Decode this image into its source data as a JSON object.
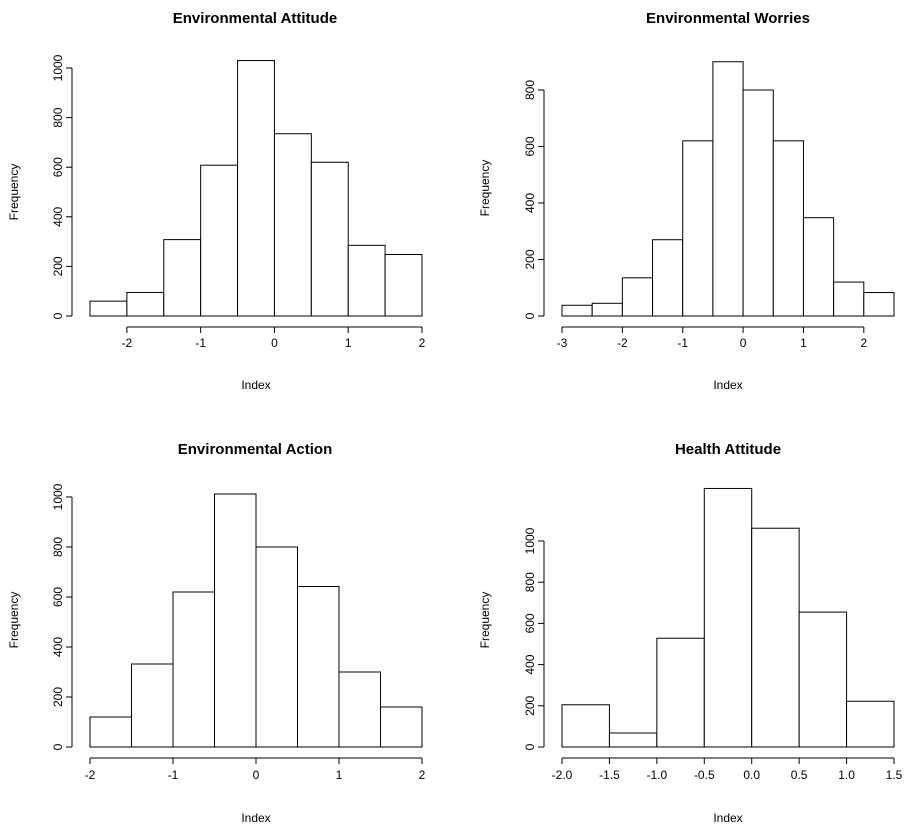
{
  "chart_data": [
    {
      "type": "bar",
      "title": "Environmental Attitude",
      "xlabel": "Index",
      "ylabel": "Frequency",
      "bin_edges": [
        -2.5,
        -2.0,
        -1.5,
        -1.0,
        -0.5,
        0.0,
        0.5,
        1.0,
        1.5,
        2.0
      ],
      "values": [
        60,
        95,
        308,
        608,
        1030,
        735,
        620,
        285,
        248
      ],
      "xticks": [
        -2,
        -1,
        0,
        1,
        2
      ],
      "xtick_labels": [
        "-2",
        "-1",
        "0",
        "1",
        "2"
      ],
      "yticks": [
        0,
        200,
        400,
        600,
        800,
        1000
      ],
      "ytick_labels": [
        "0",
        "200",
        "400",
        "600",
        "800",
        "1000"
      ]
    },
    {
      "type": "bar",
      "title": "Environmental Worries",
      "xlabel": "Index",
      "ylabel": "Frequency",
      "bin_edges": [
        -3.0,
        -2.5,
        -2.0,
        -1.5,
        -1.0,
        -0.5,
        0.0,
        0.5,
        1.0,
        1.5,
        2.0,
        2.5
      ],
      "values": [
        38,
        45,
        135,
        270,
        620,
        900,
        800,
        620,
        348,
        120,
        83
      ],
      "xticks": [
        -3,
        -2,
        -1,
        0,
        1,
        2
      ],
      "xtick_labels": [
        "-3",
        "-2",
        "-1",
        "0",
        "1",
        "2"
      ],
      "yticks": [
        0,
        200,
        400,
        600,
        800
      ],
      "ytick_labels": [
        "0",
        "200",
        "400",
        "600",
        "800"
      ]
    },
    {
      "type": "bar",
      "title": "Environmental Action",
      "xlabel": "Index",
      "ylabel": "Frequency",
      "bin_edges": [
        -2.0,
        -1.5,
        -1.0,
        -0.5,
        0.0,
        0.5,
        1.0,
        1.5,
        2.0
      ],
      "values": [
        120,
        332,
        620,
        1012,
        800,
        642,
        300,
        160
      ],
      "xticks": [
        -2,
        -1,
        0,
        1,
        2
      ],
      "xtick_labels": [
        "-2",
        "-1",
        "0",
        "1",
        "2"
      ],
      "yticks": [
        0,
        200,
        400,
        600,
        800,
        1000
      ],
      "ytick_labels": [
        "0",
        "200",
        "400",
        "600",
        "800",
        "1000"
      ]
    },
    {
      "type": "bar",
      "title": "Health Attitude",
      "xlabel": "Index",
      "ylabel": "Frequency",
      "bin_edges": [
        -2.0,
        -1.5,
        -1.0,
        -0.5,
        0.0,
        0.5,
        1.0,
        1.5
      ],
      "values": [
        205,
        68,
        528,
        1255,
        1062,
        655,
        222
      ],
      "xticks": [
        -2.0,
        -1.5,
        -1.0,
        -0.5,
        0.0,
        0.5,
        1.0,
        1.5
      ],
      "xtick_labels": [
        "-2.0",
        "-1.5",
        "-1.0",
        "-0.5",
        "0.0",
        "0.5",
        "1.0",
        "1.5"
      ],
      "yticks": [
        0,
        200,
        400,
        600,
        800,
        1000
      ],
      "ytick_labels": [
        "0",
        "200",
        "400",
        "600",
        "800",
        "1000"
      ]
    }
  ]
}
